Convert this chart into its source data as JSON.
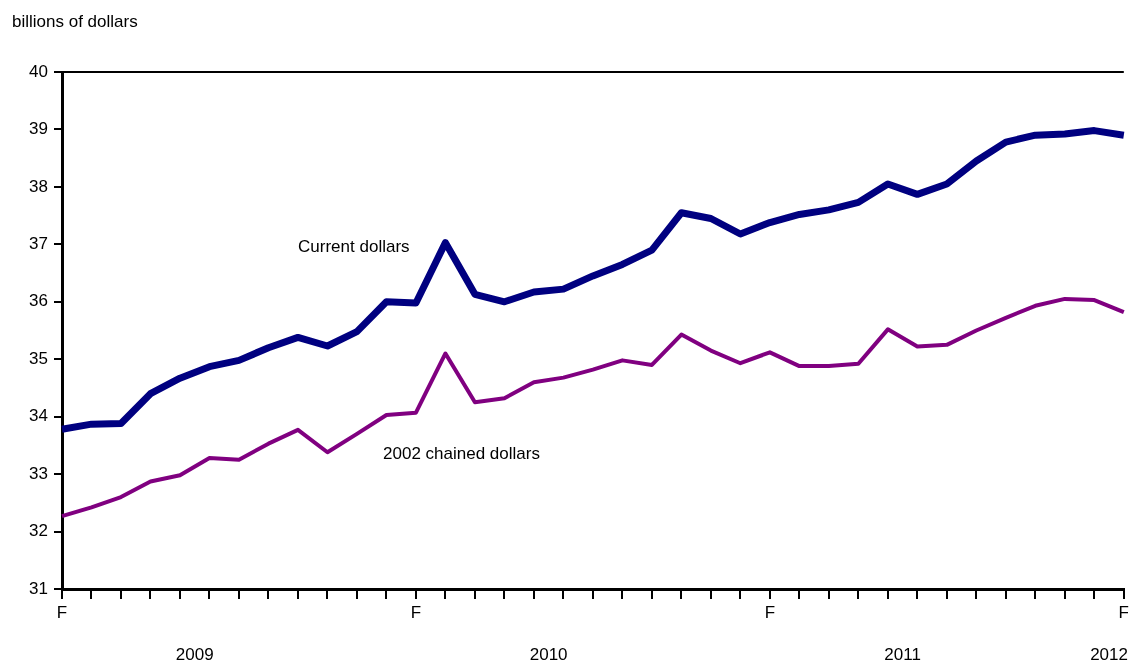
{
  "chart_data": {
    "type": "line",
    "ylabel": "billions of dollars",
    "categories": [
      "F",
      null,
      null,
      null,
      null,
      null,
      null,
      null,
      null,
      null,
      null,
      null,
      "F",
      null,
      null,
      null,
      null,
      null,
      null,
      null,
      null,
      null,
      null,
      null,
      "F",
      null,
      null,
      null,
      null,
      null,
      null,
      null,
      null,
      null,
      null,
      null,
      "F"
    ],
    "series": [
      {
        "name": "Current dollars",
        "color": "#000080",
        "values": [
          33.78,
          33.87,
          33.88,
          34.4,
          34.67,
          34.87,
          34.98,
          35.2,
          35.38,
          35.23,
          35.48,
          36.0,
          35.98,
          37.03,
          36.13,
          36.0,
          36.17,
          36.22,
          36.45,
          36.65,
          36.9,
          37.55,
          37.45,
          37.18,
          37.38,
          37.52,
          37.6,
          37.73,
          38.05,
          37.87,
          38.05,
          38.45,
          38.78,
          38.9,
          38.92,
          38.98,
          38.9
        ]
      },
      {
        "name": "2002 chained dollars",
        "color": "#800080",
        "values": [
          32.27,
          32.42,
          32.6,
          32.87,
          32.98,
          33.28,
          33.25,
          33.53,
          33.77,
          33.38,
          33.7,
          34.03,
          34.07,
          35.1,
          34.25,
          34.32,
          34.6,
          34.68,
          34.82,
          34.98,
          34.9,
          35.43,
          35.15,
          34.93,
          35.12,
          34.88,
          34.88,
          34.92,
          35.52,
          35.22,
          35.25,
          35.5,
          35.72,
          35.93,
          36.05,
          36.03,
          35.82
        ]
      }
    ],
    "ylim": [
      31,
      40
    ],
    "yticks": [
      31,
      32,
      33,
      34,
      35,
      36,
      37,
      38,
      39,
      40
    ],
    "annotations": [
      "2009",
      "2010",
      "2011",
      "2012"
    ],
    "grid": false,
    "legend": false,
    "marker": "none",
    "line_style": "solid"
  }
}
